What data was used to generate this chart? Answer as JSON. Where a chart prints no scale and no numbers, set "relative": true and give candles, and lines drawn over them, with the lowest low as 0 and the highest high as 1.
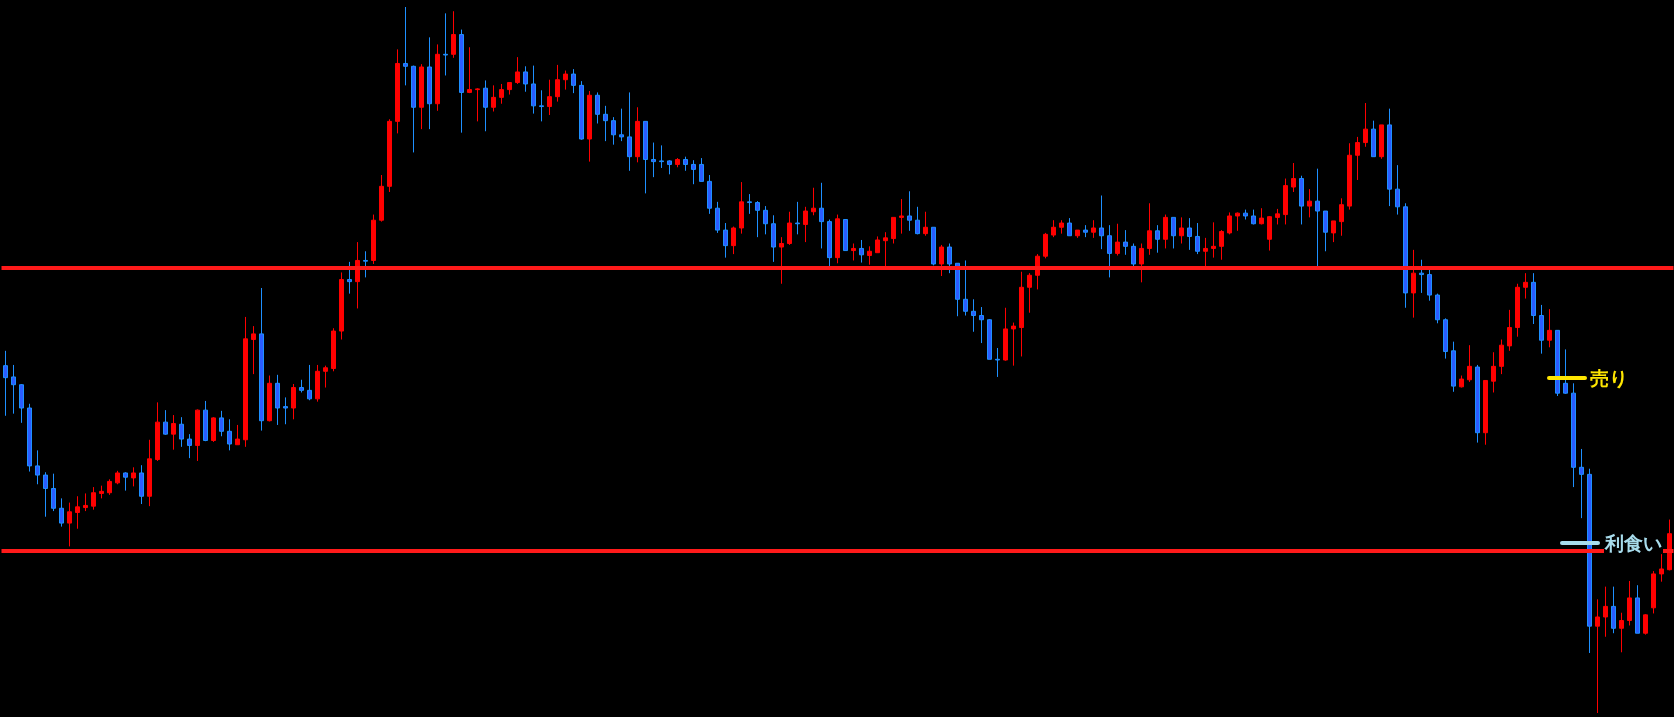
{
  "chart_data": {
    "type": "candlestick",
    "relative": true,
    "categories": [
      null,
      null,
      null,
      null,
      null,
      null,
      null,
      null,
      null,
      null,
      null,
      null,
      null,
      null,
      null,
      null,
      null,
      null,
      null,
      null,
      null,
      null,
      null,
      null,
      null,
      null,
      null,
      null,
      null,
      null,
      null,
      null,
      null,
      null,
      null,
      null,
      null,
      null,
      null,
      null,
      null,
      null,
      null,
      null,
      null,
      null,
      null,
      null,
      null,
      null,
      null,
      null,
      null,
      null,
      null,
      null,
      null,
      null,
      null,
      null,
      null,
      null,
      null,
      null,
      null,
      null,
      null,
      null,
      null,
      null,
      null,
      null,
      null,
      null,
      null,
      null,
      null,
      null,
      null,
      null,
      null,
      null,
      null,
      null,
      null,
      null,
      null,
      null,
      null,
      null,
      null,
      null,
      null,
      null,
      null,
      null,
      null,
      null,
      null,
      null,
      null,
      null,
      null,
      null,
      null,
      null,
      null,
      null,
      null,
      null,
      null,
      null,
      null,
      null,
      null,
      null,
      null,
      null,
      null,
      null,
      null,
      null,
      null,
      null,
      null,
      null,
      null,
      null,
      null,
      null,
      null,
      null,
      null,
      null,
      null,
      null,
      null,
      null,
      null,
      null,
      null,
      null,
      null,
      null,
      null,
      null,
      null,
      null,
      null,
      null,
      null,
      null,
      null,
      null,
      null,
      null,
      null,
      null,
      null,
      null,
      null,
      null,
      null,
      null,
      null,
      null,
      null,
      null,
      null,
      null,
      null,
      null,
      null,
      null,
      null,
      null,
      null,
      null,
      null,
      null,
      null,
      null,
      null,
      null,
      null,
      null,
      null,
      null,
      null,
      null,
      null,
      null,
      null,
      null,
      null,
      null,
      null,
      null,
      null,
      null,
      null,
      null,
      null,
      null,
      null,
      null,
      null,
      null,
      null
    ],
    "ohlc": [
      [
        0.492,
        0.513,
        0.421,
        0.475
      ],
      [
        0.476,
        0.493,
        0.424,
        0.465
      ],
      [
        0.465,
        0.466,
        0.411,
        0.432
      ],
      [
        0.432,
        0.438,
        0.342,
        0.35
      ],
      [
        0.35,
        0.372,
        0.324,
        0.337
      ],
      [
        0.337,
        0.341,
        0.278,
        0.318
      ],
      [
        0.318,
        0.339,
        0.286,
        0.29
      ],
      [
        0.29,
        0.304,
        0.264,
        0.269
      ],
      [
        0.269,
        0.298,
        0.236,
        0.285
      ],
      [
        0.284,
        0.307,
        0.261,
        0.292
      ],
      [
        0.291,
        0.311,
        0.286,
        0.294
      ],
      [
        0.293,
        0.32,
        0.288,
        0.312
      ],
      [
        0.311,
        0.322,
        0.304,
        0.314
      ],
      [
        0.312,
        0.331,
        0.309,
        0.328
      ],
      [
        0.326,
        0.343,
        0.324,
        0.34
      ],
      [
        0.34,
        0.341,
        0.315,
        0.334
      ],
      [
        0.333,
        0.348,
        0.321,
        0.34
      ],
      [
        0.34,
        0.351,
        0.296,
        0.307
      ],
      [
        0.307,
        0.387,
        0.293,
        0.36
      ],
      [
        0.359,
        0.44,
        0.357,
        0.412
      ],
      [
        0.412,
        0.429,
        0.394,
        0.395
      ],
      [
        0.395,
        0.422,
        0.373,
        0.41
      ],
      [
        0.409,
        0.419,
        0.377,
        0.388
      ],
      [
        0.388,
        0.395,
        0.361,
        0.379
      ],
      [
        0.379,
        0.43,
        0.357,
        0.429
      ],
      [
        0.429,
        0.442,
        0.385,
        0.386
      ],
      [
        0.386,
        0.419,
        0.384,
        0.418
      ],
      [
        0.418,
        0.428,
        0.392,
        0.399
      ],
      [
        0.399,
        0.416,
        0.372,
        0.381
      ],
      [
        0.38,
        0.408,
        0.38,
        0.388
      ],
      [
        0.387,
        0.561,
        0.377,
        0.53
      ],
      [
        0.529,
        0.548,
        0.48,
        0.537
      ],
      [
        0.537,
        0.602,
        0.4,
        0.414
      ],
      [
        0.414,
        0.478,
        0.413,
        0.467
      ],
      [
        0.467,
        0.479,
        0.408,
        0.432
      ],
      [
        0.434,
        0.447,
        0.409,
        0.432
      ],
      [
        0.432,
        0.466,
        0.416,
        0.461
      ],
      [
        0.461,
        0.472,
        0.454,
        0.457
      ],
      [
        0.457,
        0.493,
        0.443,
        0.445
      ],
      [
        0.445,
        0.493,
        0.441,
        0.484
      ],
      [
        0.484,
        0.492,
        0.461,
        0.489
      ],
      [
        0.488,
        0.545,
        0.484,
        0.541
      ],
      [
        0.541,
        0.624,
        0.529,
        0.614
      ],
      [
        0.614,
        0.639,
        0.594,
        0.611
      ],
      [
        0.611,
        0.667,
        0.573,
        0.641
      ],
      [
        0.641,
        0.654,
        0.617,
        0.64
      ],
      [
        0.641,
        0.706,
        0.636,
        0.698
      ],
      [
        0.698,
        0.762,
        0.696,
        0.746
      ],
      [
        0.746,
        0.841,
        0.738,
        0.838
      ],
      [
        0.838,
        0.94,
        0.821,
        0.92
      ],
      [
        0.92,
        1,
        0.889,
        0.916
      ],
      [
        0.916,
        0.917,
        0.794,
        0.858
      ],
      [
        0.858,
        0.919,
        0.827,
        0.915
      ],
      [
        0.915,
        0.957,
        0.827,
        0.863
      ],
      [
        0.863,
        0.947,
        0.853,
        0.933
      ],
      [
        0.933,
        0.991,
        0.903,
        0.932
      ],
      [
        0.933,
        0.994,
        0.928,
        0.961
      ],
      [
        0.961,
        0.968,
        0.822,
        0.879
      ],
      [
        0.879,
        0.943,
        0.878,
        0.883
      ],
      [
        0.883,
        0.885,
        0.838,
        0.884
      ],
      [
        0.885,
        0.896,
        0.824,
        0.858
      ],
      [
        0.858,
        0.889,
        0.852,
        0.872
      ],
      [
        0.872,
        0.891,
        0.863,
        0.883
      ],
      [
        0.883,
        0.893,
        0.876,
        0.893
      ],
      [
        0.893,
        0.929,
        0.891,
        0.908
      ],
      [
        0.908,
        0.916,
        0.88,
        0.891
      ],
      [
        0.891,
        0.917,
        0.849,
        0.86
      ],
      [
        0.86,
        0.882,
        0.838,
        0.859
      ],
      [
        0.859,
        0.897,
        0.847,
        0.873
      ],
      [
        0.873,
        0.918,
        0.866,
        0.897
      ],
      [
        0.897,
        0.91,
        0.883,
        0.905
      ],
      [
        0.905,
        0.912,
        0.878,
        0.889
      ],
      [
        0.889,
        0.895,
        0.812,
        0.813
      ],
      [
        0.813,
        0.881,
        0.781,
        0.875
      ],
      [
        0.875,
        0.879,
        0.835,
        0.848
      ],
      [
        0.848,
        0.86,
        0.81,
        0.839
      ],
      [
        0.839,
        0.844,
        0.805,
        0.819
      ],
      [
        0.819,
        0.856,
        0.81,
        0.816
      ],
      [
        0.816,
        0.879,
        0.768,
        0.788
      ],
      [
        0.788,
        0.858,
        0.78,
        0.838
      ],
      [
        0.838,
        0.838,
        0.736,
        0.784
      ],
      [
        0.784,
        0.808,
        0.759,
        0.781
      ],
      [
        0.782,
        0.804,
        0.772,
        0.781
      ],
      [
        0.782,
        0.783,
        0.763,
        0.777
      ],
      [
        0.777,
        0.786,
        0.773,
        0.784
      ],
      [
        0.784,
        0.788,
        0.768,
        0.777
      ],
      [
        0.777,
        0.783,
        0.749,
        0.77
      ],
      [
        0.777,
        0.786,
        0.753,
        0.753
      ],
      [
        0.753,
        0.762,
        0.707,
        0.715
      ],
      [
        0.715,
        0.724,
        0.68,
        0.684
      ],
      [
        0.684,
        0.694,
        0.645,
        0.662
      ],
      [
        0.662,
        0.689,
        0.65,
        0.687
      ],
      [
        0.687,
        0.752,
        0.679,
        0.724
      ],
      [
        0.724,
        0.735,
        0.707,
        0.723
      ],
      [
        0.723,
        0.725,
        0.674,
        0.712
      ],
      [
        0.712,
        0.718,
        0.678,
        0.693
      ],
      [
        0.693,
        0.705,
        0.639,
        0.66
      ],
      [
        0.66,
        0.674,
        0.608,
        0.665
      ],
      [
        0.665,
        0.71,
        0.663,
        0.694
      ],
      [
        0.694,
        0.724,
        0.678,
        0.693
      ],
      [
        0.692,
        0.717,
        0.667,
        0.711
      ],
      [
        0.71,
        0.744,
        0.705,
        0.715
      ],
      [
        0.715,
        0.751,
        0.658,
        0.696
      ],
      [
        0.696,
        0.699,
        0.63,
        0.645
      ],
      [
        0.645,
        0.706,
        0.637,
        0.7
      ],
      [
        0.699,
        0.699,
        0.655,
        0.655
      ],
      [
        0.655,
        0.665,
        0.641,
        0.658
      ],
      [
        0.658,
        0.67,
        0.638,
        0.649
      ],
      [
        0.648,
        0.661,
        0.635,
        0.654
      ],
      [
        0.652,
        0.675,
        0.652,
        0.67
      ],
      [
        0.669,
        0.681,
        0.632,
        0.673
      ],
      [
        0.672,
        0.702,
        0.665,
        0.702
      ],
      [
        0.702,
        0.728,
        0.679,
        0.704
      ],
      [
        0.704,
        0.739,
        0.683,
        0.698
      ],
      [
        0.698,
        0.717,
        0.678,
        0.679
      ],
      [
        0.679,
        0.71,
        0.676,
        0.688
      ],
      [
        0.688,
        0.688,
        0.634,
        0.636
      ],
      [
        0.636,
        0.663,
        0.619,
        0.66
      ],
      [
        0.66,
        0.665,
        0.623,
        0.636
      ],
      [
        0.637,
        0.637,
        0.562,
        0.586
      ],
      [
        0.586,
        0.641,
        0.563,
        0.569
      ],
      [
        0.569,
        0.586,
        0.54,
        0.563
      ],
      [
        0.563,
        0.575,
        0.524,
        0.557
      ],
      [
        0.557,
        0.558,
        0.501,
        0.501
      ],
      [
        0.501,
        0.517,
        0.476,
        0.5
      ],
      [
        0.5,
        0.574,
        0.499,
        0.544
      ],
      [
        0.544,
        0.553,
        0.492,
        0.548
      ],
      [
        0.546,
        0.625,
        0.505,
        0.603
      ],
      [
        0.603,
        0.623,
        0.567,
        0.62
      ],
      [
        0.62,
        0.65,
        0.6,
        0.647
      ],
      [
        0.647,
        0.68,
        0.644,
        0.678
      ],
      [
        0.677,
        0.698,
        0.674,
        0.688
      ],
      [
        0.688,
        0.698,
        0.679,
        0.694
      ],
      [
        0.694,
        0.701,
        0.676,
        0.676
      ],
      [
        0.676,
        0.684,
        0.673,
        0.684
      ],
      [
        0.684,
        0.691,
        0.674,
        0.681
      ],
      [
        0.681,
        0.698,
        0.673,
        0.687
      ],
      [
        0.687,
        0.733,
        0.657,
        0.676
      ],
      [
        0.676,
        0.691,
        0.617,
        0.651
      ],
      [
        0.651,
        0.693,
        0.648,
        0.667
      ],
      [
        0.667,
        0.684,
        0.649,
        0.661
      ],
      [
        0.661,
        0.665,
        0.629,
        0.636
      ],
      [
        0.636,
        0.665,
        0.61,
        0.658
      ],
      [
        0.658,
        0.722,
        0.649,
        0.683
      ],
      [
        0.683,
        0.691,
        0.652,
        0.671
      ],
      [
        0.671,
        0.706,
        0.658,
        0.702
      ],
      [
        0.702,
        0.702,
        0.658,
        0.676
      ],
      [
        0.676,
        0.702,
        0.665,
        0.687
      ],
      [
        0.687,
        0.701,
        0.656,
        0.675
      ],
      [
        0.675,
        0.694,
        0.65,
        0.654
      ],
      [
        0.654,
        0.673,
        0.628,
        0.658
      ],
      [
        0.658,
        0.695,
        0.645,
        0.661
      ],
      [
        0.661,
        0.684,
        0.642,
        0.682
      ],
      [
        0.68,
        0.709,
        0.678,
        0.704
      ],
      [
        0.704,
        0.709,
        0.683,
        0.708
      ],
      [
        0.708,
        0.713,
        0.699,
        0.704
      ],
      [
        0.704,
        0.713,
        0.692,
        0.693
      ],
      [
        0.693,
        0.715,
        0.692,
        0.701
      ],
      [
        0.671,
        0.704,
        0.655,
        0.703
      ],
      [
        0.702,
        0.714,
        0.692,
        0.707
      ],
      [
        0.706,
        0.757,
        0.692,
        0.747
      ],
      [
        0.745,
        0.779,
        0.738,
        0.757
      ],
      [
        0.757,
        0.761,
        0.692,
        0.718
      ],
      [
        0.718,
        0.742,
        0.702,
        0.725
      ],
      [
        0.725,
        0.771,
        0.631,
        0.711
      ],
      [
        0.711,
        0.711,
        0.654,
        0.681
      ],
      [
        0.68,
        0.697,
        0.667,
        0.697
      ],
      [
        0.696,
        0.729,
        0.676,
        0.72
      ],
      [
        0.718,
        0.807,
        0.713,
        0.79
      ],
      [
        0.79,
        0.816,
        0.755,
        0.808
      ],
      [
        0.808,
        0.864,
        0.802,
        0.827
      ],
      [
        0.827,
        0.839,
        0.788,
        0.788
      ],
      [
        0.788,
        0.833,
        0.785,
        0.833
      ],
      [
        0.833,
        0.856,
        0.718,
        0.742
      ],
      [
        0.742,
        0.776,
        0.706,
        0.717
      ],
      [
        0.717,
        0.722,
        0.574,
        0.595
      ],
      [
        0.595,
        0.656,
        0.56,
        0.623
      ],
      [
        0.623,
        0.642,
        0.595,
        0.621
      ],
      [
        0.621,
        0.628,
        0.584,
        0.592
      ],
      [
        0.592,
        0.594,
        0.552,
        0.557
      ],
      [
        0.557,
        0.559,
        0.502,
        0.512
      ],
      [
        0.513,
        0.526,
        0.455,
        0.463
      ],
      [
        0.462,
        0.478,
        0.461,
        0.473
      ],
      [
        0.472,
        0.521,
        0.469,
        0.491
      ],
      [
        0.49,
        0.493,
        0.383,
        0.397
      ],
      [
        0.397,
        0.471,
        0.38,
        0.471
      ],
      [
        0.47,
        0.511,
        0.454,
        0.491
      ],
      [
        0.491,
        0.529,
        0.48,
        0.521
      ],
      [
        0.52,
        0.571,
        0.513,
        0.546
      ],
      [
        0.546,
        0.608,
        0.533,
        0.603
      ],
      [
        0.603,
        0.623,
        0.587,
        0.61
      ],
      [
        0.61,
        0.623,
        0.551,
        0.563
      ],
      [
        0.563,
        0.578,
        0.509,
        0.528
      ],
      [
        0.528,
        0.572,
        0.518,
        0.542
      ],
      [
        0.542,
        0.542,
        0.449,
        0.453
      ],
      [
        0.467,
        0.515,
        0.452,
        0.453
      ],
      [
        0.453,
        0.467,
        0.32,
        0.348
      ],
      [
        0.348,
        0.374,
        0.276,
        0.338
      ],
      [
        0.338,
        0.346,
        0.085,
        0.123
      ],
      [
        0.123,
        0.161,
        0,
        0.136
      ],
      [
        0.136,
        0.179,
        0.108,
        0.151
      ],
      [
        0.151,
        0.179,
        0.113,
        0.12
      ],
      [
        0.12,
        0.142,
        0.086,
        0.131
      ],
      [
        0.131,
        0.187,
        0.124,
        0.163
      ],
      [
        0.163,
        0.181,
        0.113,
        0.113
      ],
      [
        0.113,
        0.14,
        0.111,
        0.139
      ],
      [
        0.149,
        0.201,
        0.141,
        0.197
      ],
      [
        0.197,
        0.225,
        0.186,
        0.204
      ],
      [
        0.203,
        0.274,
        0.202,
        0.254
      ]
    ],
    "ref_lines": [
      {
        "axis": "y",
        "value": 0.63,
        "color": "#ff1a1a"
      },
      {
        "axis": "y",
        "value": 0.23,
        "color": "#ff1a1a"
      }
    ],
    "annotations": [
      "売り",
      "利食い"
    ]
  }
}
